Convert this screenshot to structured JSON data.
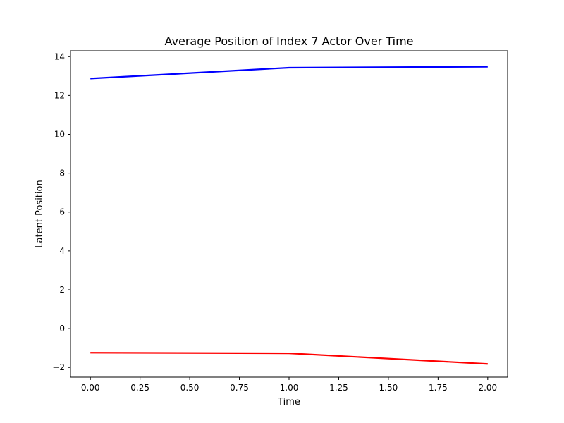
{
  "chart_data": {
    "type": "line",
    "title": "Average Position of Index 7 Actor Over Time",
    "xlabel": "Time",
    "ylabel": "Latent Position",
    "xlim": [
      -0.1,
      2.1
    ],
    "ylim": [
      -2.5,
      14.3
    ],
    "x_ticks": [
      0.0,
      0.25,
      0.5,
      0.75,
      1.0,
      1.25,
      1.5,
      1.75,
      2.0
    ],
    "x_tick_labels": [
      "0.00",
      "0.25",
      "0.50",
      "0.75",
      "1.00",
      "1.25",
      "1.50",
      "1.75",
      "2.00"
    ],
    "y_ticks": [
      -2,
      0,
      2,
      4,
      6,
      8,
      10,
      12,
      14
    ],
    "y_tick_labels": [
      "−2",
      "0",
      "2",
      "4",
      "6",
      "8",
      "10",
      "12",
      "14"
    ],
    "grid": false,
    "legend": "none",
    "x": [
      0,
      1,
      2
    ],
    "series": [
      {
        "values": [
          12.87,
          13.43,
          13.48
        ],
        "color": "#0000ff"
      },
      {
        "values": [
          -1.24,
          -1.27,
          -1.82
        ],
        "color": "#ff0000"
      }
    ]
  }
}
